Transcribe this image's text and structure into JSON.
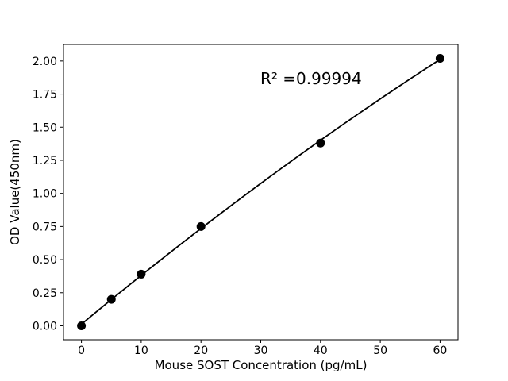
{
  "chart_data": {
    "type": "scatter",
    "title": "",
    "xlabel": "Mouse SOST Concentration (pg/mL)",
    "ylabel": "OD Value(450nm)",
    "annotation": "R² =0.99994",
    "r_squared": 0.99994,
    "x": [
      0,
      5,
      10,
      20,
      40,
      60
    ],
    "y": [
      0.0,
      0.2,
      0.39,
      0.75,
      1.38,
      2.02
    ],
    "fit": {
      "type": "quadratic",
      "a": 0.0124,
      "b": 0.03752,
      "c": -6.983e-05
    },
    "xticks": [
      "0",
      "10",
      "20",
      "30",
      "40",
      "50",
      "60"
    ],
    "xtick_values": [
      0,
      10,
      20,
      30,
      40,
      50,
      60
    ],
    "yticks": [
      "0.00",
      "0.25",
      "0.50",
      "0.75",
      "1.00",
      "1.25",
      "1.50",
      "1.75",
      "2.00"
    ],
    "ytick_values": [
      0,
      0.25,
      0.5,
      0.75,
      1.0,
      1.25,
      1.5,
      1.75,
      2.0
    ],
    "xlim": [
      -3,
      63
    ],
    "ylim": [
      -0.105,
      2.125
    ],
    "grid": false,
    "legend": null,
    "line_color": "#000000",
    "marker_color": "#000000",
    "axis_color": "#000000",
    "background": "#ffffff"
  }
}
